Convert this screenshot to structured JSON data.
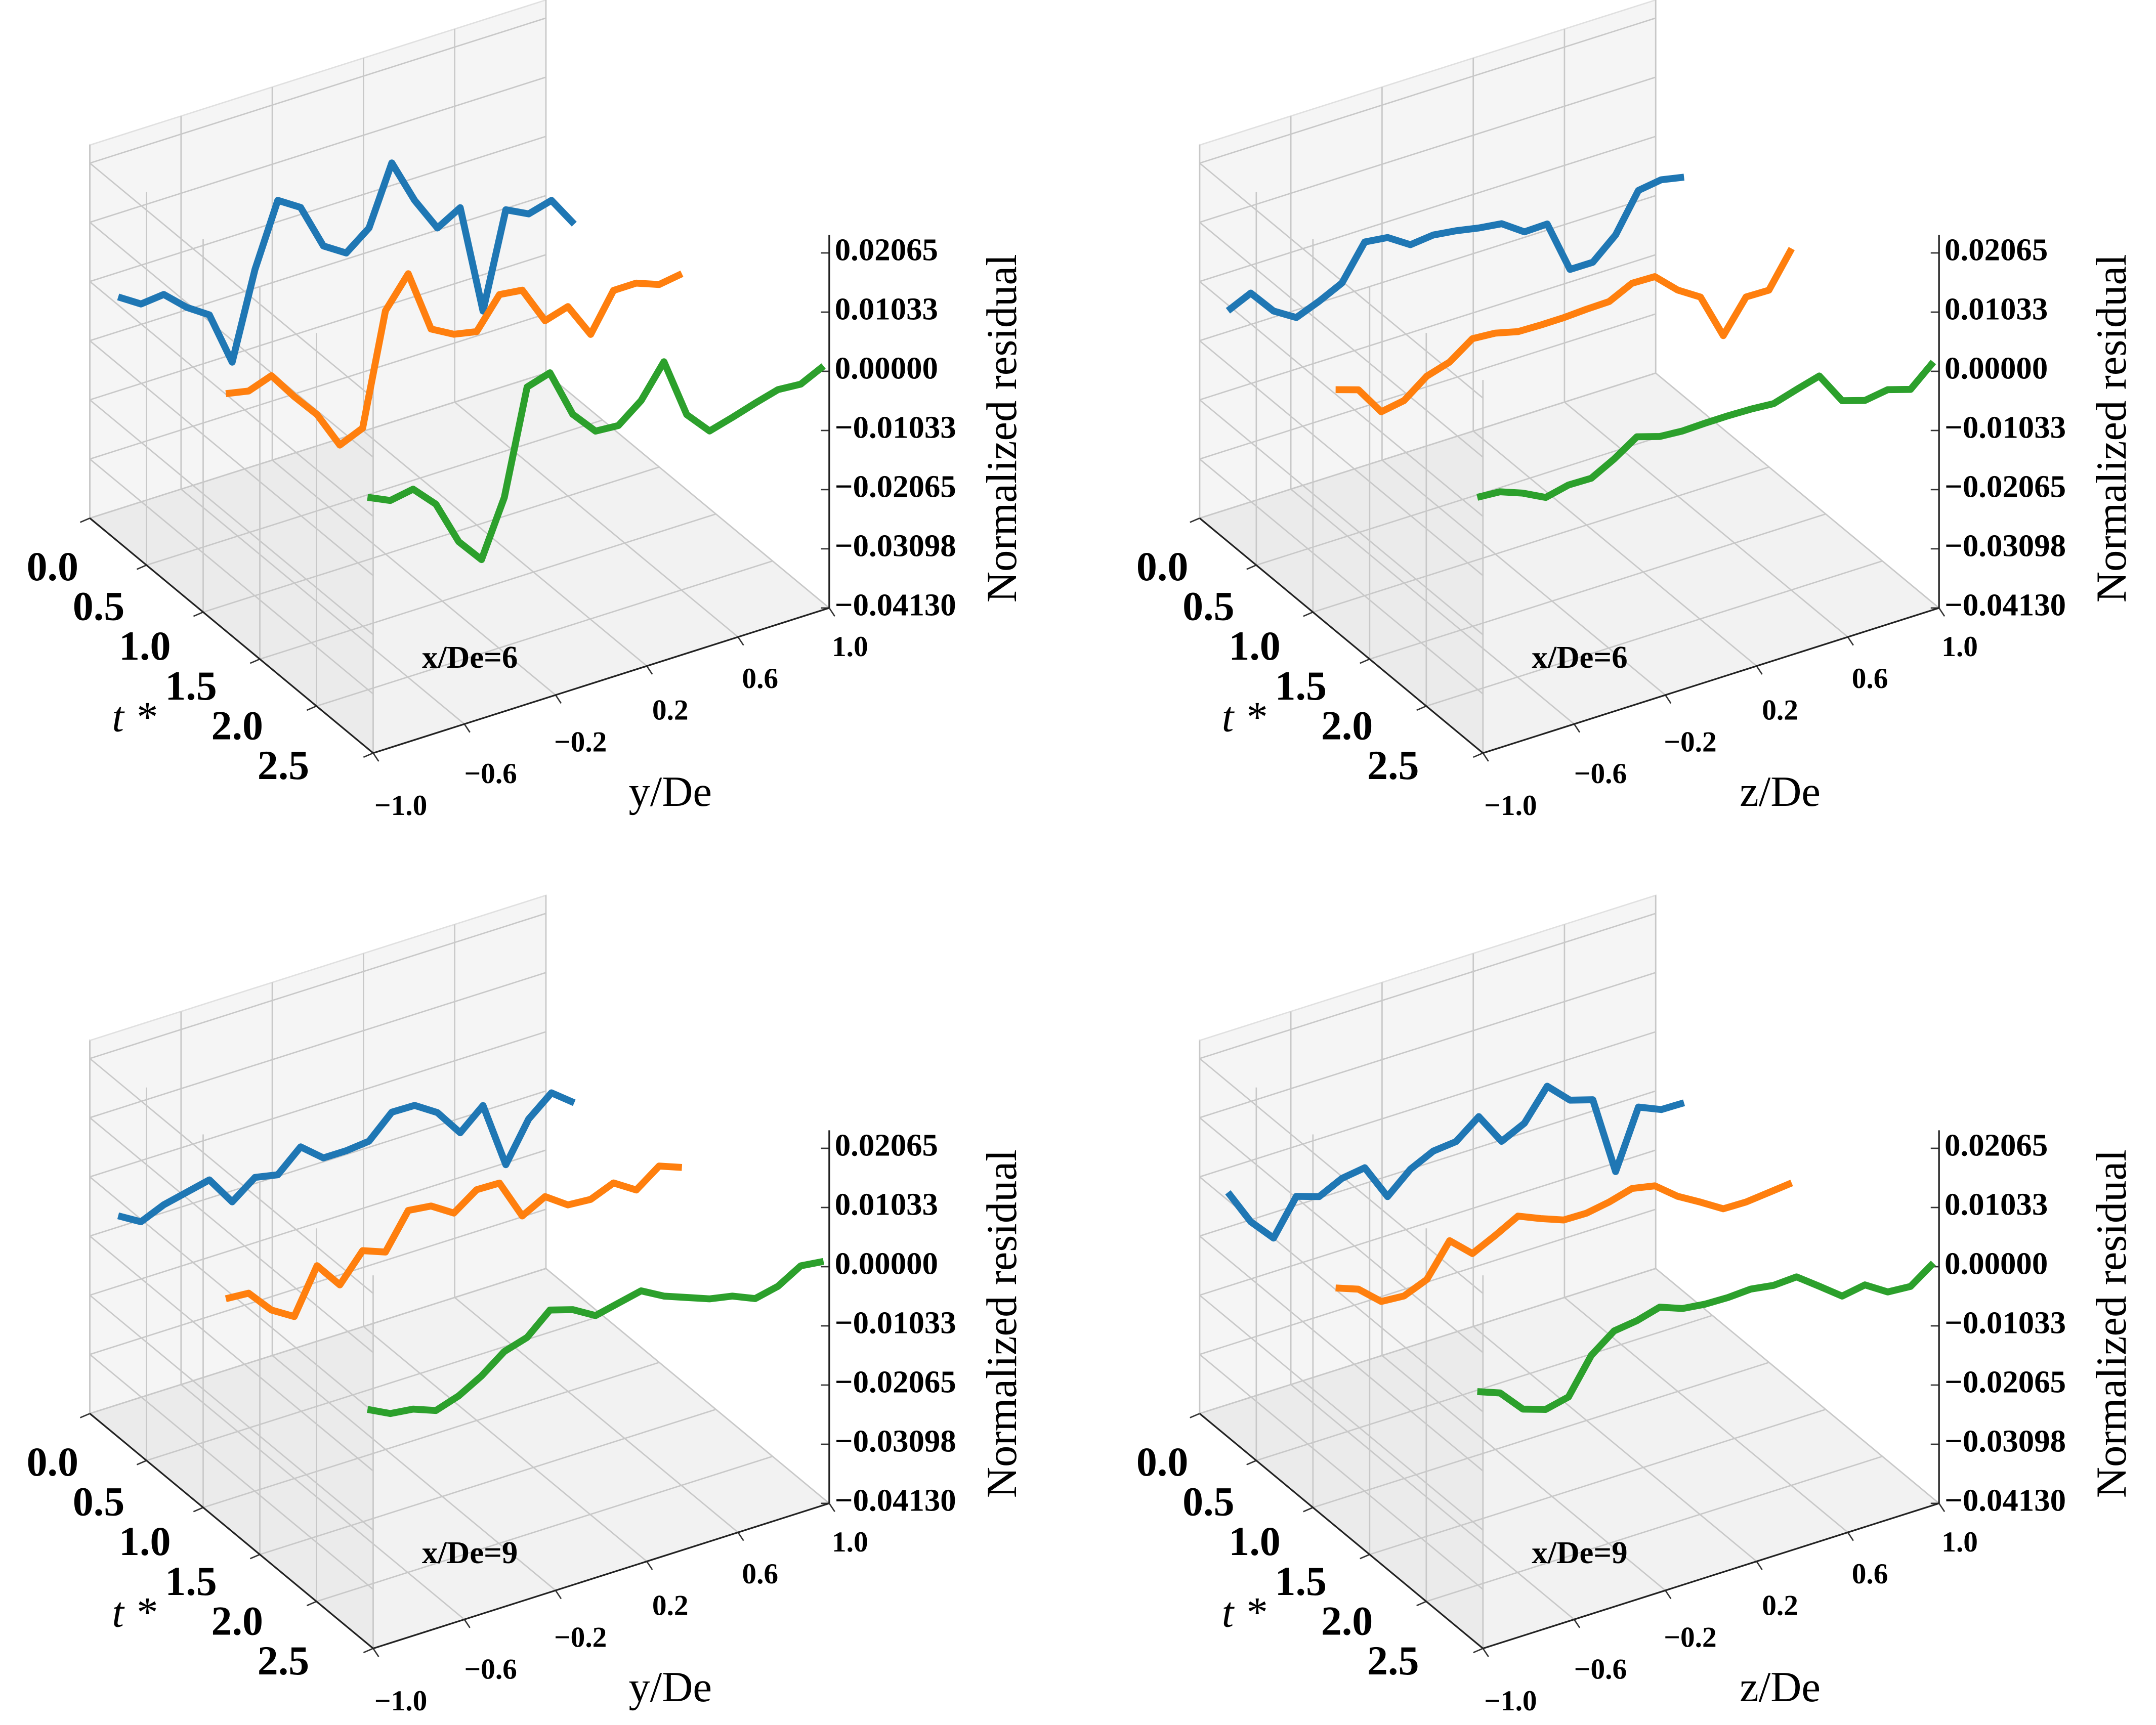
{
  "chart_data": [
    {
      "type": "line3d",
      "xlabel": "y/De",
      "ylabel": "t *",
      "zlabel": "Normalized residual",
      "annotation": "x/De=6",
      "x": [
        -1,
        -0.9,
        -0.8,
        -0.7,
        -0.6,
        -0.5,
        -0.4,
        -0.3,
        -0.2,
        -0.1,
        0,
        0.1,
        0.2,
        0.3,
        0.4,
        0.5,
        0.6,
        0.7,
        0.8,
        0.9,
        1
      ],
      "xlim": [
        -1,
        1
      ],
      "ylim": [
        0,
        2.5
      ],
      "zlim": [
        -0.0413,
        0.0238
      ],
      "xticks": [
        {
          "value": -1,
          "label": "−1.0"
        },
        {
          "value": -0.6,
          "label": "−0.6"
        },
        {
          "value": -0.2,
          "label": "−0.2"
        },
        0.2,
        0.6,
        {
          "value": 1,
          "label": "1.0"
        }
      ],
      "yticks": [
        {
          "value": 0,
          "label": "0.0"
        },
        0.5,
        {
          "value": 1,
          "label": "1.0"
        },
        1.5,
        {
          "value": 2,
          "label": "2.0"
        },
        2.5
      ],
      "zticks": [
        0.02065,
        0.01033,
        {
          "value": 0,
          "label": "0.00000"
        },
        {
          "value": -0.01033,
          "label": "−0.01033"
        },
        {
          "value": -0.02065,
          "label": "−0.02065"
        },
        {
          "value": -0.03098,
          "label": "−0.03098"
        },
        {
          "value": -0.0413,
          "label": "−0.04130"
        }
      ],
      "grid": true,
      "series": [
        {
          "color": "#1f77b4",
          "t": 0.25,
          "values": [
            0.0014,
            -0.0011,
            -0.0007,
            -0.0042,
            -0.0068,
            -0.0163,
            -0.0014,
            0.0094,
            0.0069,
            -0.0011,
            -0.0036,
            -0.0005,
            0.0096,
            0.0018,
            -0.0043,
            -0.002,
            -0.0213,
            -0.0049,
            -0.0069,
            -0.0058,
            -0.0112
          ]
        },
        {
          "color": "#ff7f0e",
          "t": 1.2,
          "values": [
            0.0001,
            -0.0007,
            0.0007,
            -0.0042,
            -0.0086,
            -0.0152,
            -0.0135,
            0.0057,
            0.0109,
            0.0,
            -0.0022,
            -0.003,
            0.0022,
            0.0017,
            -0.0049,
            -0.0037,
            -0.0098,
            -0.0034,
            -0.0034,
            -0.0049,
            -0.0043
          ]
        },
        {
          "color": "#2ca02c",
          "t": 2.45,
          "values": [
            0.0025,
            0.0007,
            0.0014,
            -0.0025,
            -0.0103,
            -0.0147,
            -0.0051,
            0.0129,
            0.0141,
            0.0056,
            0.0014,
            0.0011,
            0.0042,
            0.0097,
            -0.0008,
            -0.0049,
            -0.0038,
            -0.0026,
            -0.0015,
            -0.0018,
            0.0001
          ]
        }
      ]
    },
    {
      "type": "line3d",
      "xlabel": "z/De",
      "ylabel": "t *",
      "zlabel": "Normalized residual",
      "annotation": "x/De=6",
      "x": [
        -1,
        -0.9,
        -0.8,
        -0.7,
        -0.6,
        -0.5,
        -0.4,
        -0.3,
        -0.2,
        -0.1,
        0,
        0.1,
        0.2,
        0.3,
        0.4,
        0.5,
        0.6,
        0.7,
        0.8,
        0.9,
        1
      ],
      "xlim": [
        -1,
        1
      ],
      "ylim": [
        0,
        2.5
      ],
      "zlim": [
        -0.0413,
        0.0238
      ],
      "xticks": [
        {
          "value": -1,
          "label": "−1.0"
        },
        {
          "value": -0.6,
          "label": "−0.6"
        },
        {
          "value": -0.2,
          "label": "−0.2"
        },
        0.2,
        0.6,
        {
          "value": 1,
          "label": "1.0"
        }
      ],
      "yticks": [
        {
          "value": 0,
          "label": "0.0"
        },
        0.5,
        {
          "value": 1,
          "label": "1.0"
        },
        1.5,
        {
          "value": 2,
          "label": "2.0"
        },
        2.5
      ],
      "zticks": [
        0.02065,
        0.01033,
        {
          "value": 0,
          "label": "0.00000"
        },
        {
          "value": -0.01033,
          "label": "−0.01033"
        },
        {
          "value": -0.02065,
          "label": "−0.02065"
        },
        {
          "value": -0.03098,
          "label": "−0.03098"
        },
        {
          "value": -0.0413,
          "label": "−0.04130"
        }
      ],
      "grid": true,
      "series": [
        {
          "color": "#1f77b4",
          "t": 0.25,
          "values": [
            -0.001,
            0.0008,
            -0.0036,
            -0.006,
            -0.0044,
            -0.0025,
            0.0034,
            0.0029,
            0.0004,
            0.0008,
            0.0003,
            -0.0005,
            -0.001,
            -0.0037,
            -0.0036,
            -0.0128,
            -0.0128,
            -0.0093,
            -0.0028,
            -0.0022,
            -0.003
          ]
        },
        {
          "color": "#ff7f0e",
          "t": 1.2,
          "values": [
            0.0008,
            -0.0005,
            -0.0056,
            -0.0049,
            -0.0019,
            -0.0007,
            0.0021,
            0.0018,
            0.0008,
            0.0007,
            0.0007,
            0.0009,
            0.001,
            0.0029,
            0.0028,
            -0.0008,
            -0.0033,
            -0.0113,
            -0.0058,
            -0.0059,
            0.0001
          ]
        },
        {
          "color": "#2ca02c",
          "t": 2.45,
          "values": [
            0.0025,
            0.0022,
            0.0007,
            -0.0013,
            -0.0004,
            -0.0005,
            0.0016,
            0.0042,
            0.003,
            0.0027,
            0.0028,
            0.0028,
            0.0027,
            0.0024,
            0.0036,
            0.0047,
            -0.0009,
            -0.0021,
            -0.0015,
            -0.0027,
            0.0008
          ]
        }
      ]
    },
    {
      "type": "line3d",
      "xlabel": "y/De",
      "ylabel": "t *",
      "zlabel": "Normalized residual",
      "annotation": "x/De=9",
      "x": [
        -1,
        -0.9,
        -0.8,
        -0.7,
        -0.6,
        -0.5,
        -0.4,
        -0.3,
        -0.2,
        -0.1,
        0,
        0.1,
        0.2,
        0.3,
        0.4,
        0.5,
        0.6,
        0.7,
        0.8,
        0.9,
        1
      ],
      "xlim": [
        -1,
        1
      ],
      "ylim": [
        0,
        2.5
      ],
      "zlim": [
        -0.0413,
        0.0238
      ],
      "xticks": [
        {
          "value": -1,
          "label": "−1.0"
        },
        {
          "value": -0.6,
          "label": "−0.6"
        },
        {
          "value": -0.2,
          "label": "−0.2"
        },
        0.2,
        0.6,
        {
          "value": 1,
          "label": "1.0"
        }
      ],
      "yticks": [
        {
          "value": 0,
          "label": "0.0"
        },
        0.5,
        {
          "value": 1,
          "label": "1.0"
        },
        1.5,
        {
          "value": 2,
          "label": "2.0"
        },
        2.5
      ],
      "zticks": [
        0.02065,
        0.01033,
        {
          "value": 0,
          "label": "0.00000"
        },
        {
          "value": -0.01033,
          "label": "−0.01033"
        },
        {
          "value": -0.02065,
          "label": "−0.02065"
        },
        {
          "value": -0.03098,
          "label": "−0.03098"
        },
        {
          "value": -0.0413,
          "label": "−0.04130"
        }
      ],
      "grid": true,
      "series": [
        {
          "color": "#1f77b4",
          "t": 0.25,
          "values": [
            -0.0027,
            -0.005,
            -0.0033,
            -0.0024,
            -0.0015,
            -0.0066,
            -0.0036,
            -0.0044,
            -0.0008,
            -0.004,
            -0.004,
            -0.0036,
            0.0002,
            0.0001,
            -0.0024,
            -0.0072,
            -0.0037,
            -0.0153,
            -0.0086,
            -0.0053,
            -0.0083
          ]
        },
        {
          "color": "#ff7f0e",
          "t": 1.2,
          "values": [
            -0.0016,
            -0.0019,
            -0.0061,
            -0.0085,
            -0.0009,
            -0.0055,
            -0.0008,
            -0.0023,
            0.0037,
            0.0032,
            0.0007,
            0.0035,
            0.0034,
            -0.0036,
            -0.0015,
            -0.0042,
            -0.0045,
            -0.0029,
            -0.0054,
            -0.0025,
            -0.004
          ]
        },
        {
          "color": "#2ca02c",
          "t": 2.45,
          "values": [
            -0.0004,
            -0.0024,
            -0.0029,
            -0.0044,
            -0.0031,
            -0.0009,
            0.0021,
            0.0033,
            0.0068,
            0.0056,
            0.0033,
            0.0042,
            0.0051,
            0.0029,
            0.0014,
            -0.0001,
            -0.0009,
            -0.0026,
            -0.0017,
            0.0006,
            0.0001
          ]
        }
      ]
    },
    {
      "type": "line3d",
      "xlabel": "z/De",
      "ylabel": "t *",
      "zlabel": "Normalized residual",
      "annotation": "x/De=9",
      "x": [
        -1,
        -0.9,
        -0.8,
        -0.7,
        -0.6,
        -0.5,
        -0.4,
        -0.3,
        -0.2,
        -0.1,
        0,
        0.1,
        0.2,
        0.3,
        0.4,
        0.5,
        0.6,
        0.7,
        0.8,
        0.9,
        1
      ],
      "xlim": [
        -1,
        1
      ],
      "ylim": [
        0,
        2.5
      ],
      "zlim": [
        -0.0413,
        0.0238
      ],
      "xticks": [
        {
          "value": -1,
          "label": "−1.0"
        },
        {
          "value": -0.6,
          "label": "−0.6"
        },
        {
          "value": -0.2,
          "label": "−0.2"
        },
        0.2,
        0.6,
        {
          "value": 1,
          "label": "1.0"
        }
      ],
      "yticks": [
        {
          "value": 0,
          "label": "0.0"
        },
        0.5,
        {
          "value": 1,
          "label": "1.0"
        },
        1.5,
        {
          "value": 2,
          "label": "2.0"
        },
        2.5
      ],
      "zticks": [
        0.02065,
        0.01033,
        {
          "value": 0,
          "label": "0.00000"
        },
        {
          "value": -0.01033,
          "label": "−0.01033"
        },
        {
          "value": -0.02065,
          "label": "−0.02065"
        },
        {
          "value": -0.03098,
          "label": "−0.03098"
        },
        {
          "value": -0.0413,
          "label": "−0.04130"
        }
      ],
      "grid": true,
      "series": [
        {
          "color": "#1f77b4",
          "t": 0.25,
          "values": [
            0.0014,
            -0.005,
            -0.0091,
            -0.0031,
            -0.0044,
            -0.0025,
            -0.0019,
            -0.0082,
            -0.0047,
            -0.0028,
            -0.0024,
            0.0007,
            -0.0049,
            -0.003,
            0.0022,
            -0.0015,
            -0.0027,
            -0.0165,
            -0.0065,
            -0.0082,
            -0.0083
          ]
        },
        {
          "color": "#ff7f0e",
          "t": 1.2,
          "values": [
            0.0003,
            -0.0012,
            -0.0046,
            -0.0049,
            -0.0033,
            0.0022,
            -0.0013,
            0.0006,
            0.0027,
            0.001,
            -0.0005,
            -0.0006,
            0.0001,
            0.0012,
            0.0004,
            -0.0027,
            -0.005,
            -0.0074,
            -0.0075,
            -0.0071,
            -0.0067
          ]
        },
        {
          "color": "#2ca02c",
          "t": 2.45,
          "values": [
            0.0027,
            0.0012,
            -0.0029,
            -0.0042,
            -0.0033,
            0.0027,
            0.0057,
            0.0062,
            0.0073,
            0.0058,
            0.0053,
            0.0052,
            0.0054,
            0.0048,
            0.005,
            0.0021,
            -0.0009,
            -0.0002,
            -0.0027,
            -0.003,
            -0.0002
          ]
        }
      ]
    }
  ]
}
